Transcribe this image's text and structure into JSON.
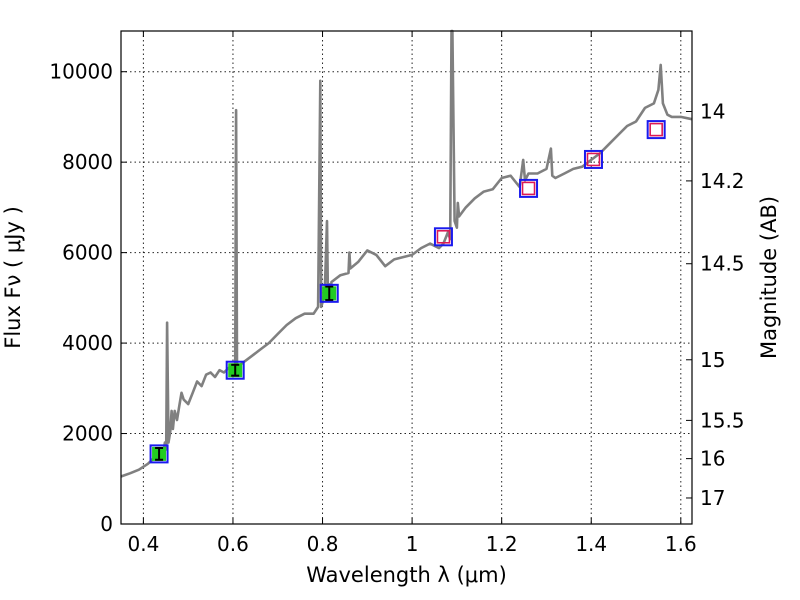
{
  "chart_data": {
    "type": "line",
    "xlabel": "Wavelength  λ (μm)",
    "ylabel": "Flux  Fν  ( μJy )",
    "y2label": "Magnitude (AB)",
    "xlim": [
      0.35,
      1.625
    ],
    "ylim": [
      0,
      10900
    ],
    "grid": true,
    "x_ticks": [
      0.4,
      0.6,
      0.8,
      1.0,
      1.2,
      1.4,
      1.6
    ],
    "x_tick_labels": [
      "0.4",
      "0.6",
      "0.8",
      "1",
      "1.2",
      "1.4",
      "1.6"
    ],
    "y_ticks": [
      0,
      2000,
      4000,
      6000,
      8000,
      10000
    ],
    "y_tick_labels": [
      "0",
      "2000",
      "4000",
      "6000",
      "8000",
      "10000"
    ],
    "y2_ticks": [
      14,
      14.2,
      14.5,
      15,
      15.5,
      16,
      17
    ],
    "y2_tick_labels": [
      "14",
      "14.2",
      "14.5",
      "15",
      "15.5",
      "16",
      "17"
    ],
    "colors": {
      "spectrum": "#808080",
      "photometry_fill": "#22cc22",
      "model_box": "#1a1aee",
      "nir_marker": "#dd1a55",
      "error_bar": "#000000"
    },
    "spectrum": {
      "x": [
        0.35,
        0.37,
        0.39,
        0.41,
        0.43,
        0.44,
        0.445,
        0.448,
        0.451,
        0.453,
        0.456,
        0.46,
        0.463,
        0.466,
        0.47,
        0.475,
        0.48,
        0.485,
        0.49,
        0.5,
        0.51,
        0.52,
        0.53,
        0.54,
        0.55,
        0.56,
        0.57,
        0.58,
        0.59,
        0.6,
        0.603,
        0.605,
        0.607,
        0.609,
        0.611,
        0.62,
        0.64,
        0.66,
        0.68,
        0.7,
        0.72,
        0.74,
        0.76,
        0.78,
        0.79,
        0.795,
        0.797,
        0.8,
        0.805,
        0.81,
        0.812,
        0.815,
        0.818,
        0.82,
        0.84,
        0.858,
        0.86,
        0.862,
        0.88,
        0.9,
        0.92,
        0.94,
        0.96,
        0.98,
        1.0,
        1.02,
        1.04,
        1.06,
        1.07,
        1.08,
        1.085,
        1.088,
        1.09,
        1.095,
        1.1,
        1.102,
        1.105,
        1.12,
        1.14,
        1.16,
        1.18,
        1.2,
        1.22,
        1.24,
        1.248,
        1.252,
        1.26,
        1.28,
        1.3,
        1.31,
        1.313,
        1.32,
        1.34,
        1.36,
        1.38,
        1.4,
        1.42,
        1.44,
        1.46,
        1.48,
        1.5,
        1.52,
        1.54,
        1.55,
        1.555,
        1.56,
        1.57,
        1.58,
        1.6,
        1.625
      ],
      "y": [
        1050,
        1120,
        1200,
        1330,
        1520,
        1540,
        1600,
        1800,
        1650,
        4450,
        1800,
        2050,
        2500,
        2100,
        2500,
        2300,
        2600,
        2900,
        2750,
        2650,
        2900,
        3150,
        3050,
        3300,
        3350,
        3250,
        3400,
        3350,
        3450,
        3400,
        3300,
        3450,
        9150,
        3500,
        3480,
        3550,
        3700,
        3850,
        4000,
        4200,
        4400,
        4550,
        4650,
        4650,
        4800,
        9800,
        4800,
        4900,
        5150,
        6700,
        5100,
        5300,
        5150,
        5350,
        5500,
        5550,
        6000,
        5650,
        5800,
        6050,
        5950,
        5700,
        5850,
        5900,
        5950,
        6100,
        6200,
        6100,
        6200,
        6450,
        6300,
        10900,
        10900,
        6700,
        6550,
        7100,
        6800,
        7000,
        7200,
        7350,
        7400,
        7650,
        7700,
        7450,
        8050,
        7600,
        7750,
        7750,
        7850,
        8300,
        7700,
        7650,
        7750,
        7850,
        7900,
        8050,
        8200,
        8400,
        8600,
        8800,
        8900,
        9200,
        9300,
        9600,
        10150,
        9300,
        9050,
        9000,
        9000,
        8950
      ],
      "values": []
    },
    "photometry": {
      "x": [
        0.435,
        0.605,
        0.815
      ],
      "y": [
        1550,
        3400,
        5100
      ],
      "yerr": [
        130,
        120,
        150
      ],
      "values": []
    },
    "model_points": {
      "x": [
        0.435,
        0.605,
        0.815,
        1.07,
        1.26,
        1.405,
        1.545
      ],
      "y": [
        1550,
        3400,
        5100,
        6350,
        7420,
        8060,
        8720
      ],
      "values": []
    },
    "nir_points": {
      "x": [
        1.07,
        1.26,
        1.405,
        1.545
      ],
      "y": [
        6350,
        7420,
        8060,
        8720
      ],
      "values": []
    }
  }
}
